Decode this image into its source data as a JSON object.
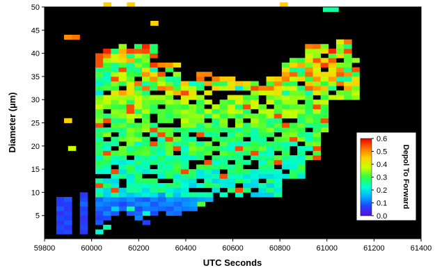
{
  "chart_data": {
    "type": "heatmap",
    "xlabel": "UTC Seconds",
    "ylabel": "Diameter (µm)",
    "xlim": [
      59800,
      61400
    ],
    "ylim": [
      0,
      50
    ],
    "x_ticks": [
      "59800",
      "60000",
      "60200",
      "60400",
      "60600",
      "60800",
      "61000",
      "61200",
      "61400"
    ],
    "y_ticks": [
      "5",
      "10",
      "15",
      "20",
      "25",
      "30",
      "35",
      "40",
      "45",
      "50"
    ],
    "background": "#000000",
    "colorbar": {
      "title": "Depol To Forward",
      "range": [
        0,
        0.6
      ],
      "ticks": [
        "0.0",
        "0.1",
        "0.2",
        "0.3",
        "0.4",
        "0.5",
        "0.6"
      ],
      "colors": [
        "#5a10e0",
        "#2040ff",
        "#00b4ff",
        "#00ffd0",
        "#30ff40",
        "#c8ff00",
        "#ffd000",
        "#ff7000",
        "#e80000"
      ],
      "placement": "right-inside"
    },
    "x_bin_width": 33,
    "y_bin_width": 1,
    "points_note": "each point: [x_start (UTC s), diameter_start (um), depol ratio]",
    "points": [
      [
        59850,
        1,
        0.07
      ],
      [
        59850,
        2,
        0.08
      ],
      [
        59850,
        3,
        0.06
      ],
      [
        59850,
        4,
        0.08
      ],
      [
        59850,
        5,
        0.05
      ],
      [
        59850,
        6,
        0.09
      ],
      [
        59850,
        7,
        0.06
      ],
      [
        59850,
        8,
        0.07
      ],
      [
        59883,
        1,
        0.08
      ],
      [
        59883,
        2,
        0.06
      ],
      [
        59883,
        3,
        0.09
      ],
      [
        59883,
        4,
        0.07
      ],
      [
        59883,
        5,
        0.08
      ],
      [
        59883,
        6,
        0.06
      ],
      [
        59883,
        7,
        0.07
      ],
      [
        59883,
        8,
        0.09
      ],
      [
        59950,
        1,
        0.06
      ],
      [
        59950,
        2,
        0.08
      ],
      [
        59950,
        3,
        0.07
      ],
      [
        59950,
        4,
        0.05
      ],
      [
        59950,
        5,
        0.08
      ],
      [
        59950,
        6,
        0.07
      ],
      [
        59950,
        7,
        0.1
      ],
      [
        59950,
        8,
        0.08
      ],
      [
        59950,
        9,
        0.06
      ],
      [
        60016,
        1,
        0.22
      ],
      [
        60016,
        3,
        0.09
      ],
      [
        60016,
        4,
        0.07
      ],
      [
        60016,
        5,
        0.08
      ],
      [
        60016,
        6,
        0.1
      ],
      [
        60016,
        7,
        0.12
      ],
      [
        60016,
        8,
        0.1
      ],
      [
        60016,
        9,
        0.14
      ],
      [
        60049,
        2,
        0.25
      ],
      [
        60049,
        4,
        0.08
      ],
      [
        60049,
        5,
        0.12
      ],
      [
        60049,
        6,
        0.09
      ],
      [
        60049,
        7,
        0.11
      ],
      [
        60049,
        8,
        0.13
      ],
      [
        60049,
        9,
        0.1
      ],
      [
        60083,
        5,
        0.09
      ],
      [
        60083,
        6,
        0.18
      ],
      [
        60083,
        7,
        0.1
      ],
      [
        60083,
        8,
        0.12
      ],
      [
        60083,
        9,
        0.14
      ],
      [
        60116,
        6,
        0.1
      ],
      [
        60116,
        7,
        0.08
      ],
      [
        60116,
        8,
        0.11
      ],
      [
        60116,
        9,
        0.12
      ],
      [
        60149,
        5,
        0.09
      ],
      [
        60149,
        6,
        0.25
      ],
      [
        60149,
        7,
        0.1
      ],
      [
        60149,
        8,
        0.13
      ],
      [
        60149,
        9,
        0.1
      ],
      [
        60183,
        4,
        0.12
      ],
      [
        60183,
        5,
        0.1
      ],
      [
        60183,
        6,
        0.08
      ],
      [
        60183,
        7,
        0.12
      ],
      [
        60183,
        8,
        0.1
      ],
      [
        60183,
        9,
        0.13
      ],
      [
        60216,
        3,
        0.07
      ],
      [
        60216,
        5,
        0.22
      ],
      [
        60216,
        6,
        0.11
      ],
      [
        60216,
        7,
        0.13
      ],
      [
        60216,
        8,
        0.09
      ],
      [
        60216,
        9,
        0.12
      ],
      [
        60249,
        5,
        0.08
      ],
      [
        60249,
        6,
        0.11
      ],
      [
        60249,
        7,
        0.09
      ],
      [
        60249,
        8,
        0.12
      ],
      [
        60249,
        9,
        0.14
      ],
      [
        60283,
        6,
        0.1
      ],
      [
        60283,
        7,
        0.12
      ],
      [
        60283,
        8,
        0.1
      ],
      [
        60283,
        9,
        0.13
      ],
      [
        60316,
        5,
        0.11
      ],
      [
        60316,
        6,
        0.09
      ],
      [
        60316,
        7,
        0.12
      ],
      [
        60316,
        8,
        0.14
      ],
      [
        60316,
        9,
        0.12
      ],
      [
        60349,
        5,
        0.1
      ],
      [
        60349,
        6,
        0.12
      ],
      [
        60349,
        7,
        0.1
      ],
      [
        60349,
        8,
        0.13
      ],
      [
        60349,
        9,
        0.15
      ],
      [
        60383,
        6,
        0.11
      ],
      [
        60383,
        7,
        0.13
      ],
      [
        60383,
        8,
        0.12
      ],
      [
        60383,
        9,
        0.14
      ],
      [
        60416,
        6,
        0.12
      ],
      [
        60416,
        7,
        0.14
      ],
      [
        60416,
        8,
        0.13
      ],
      [
        60416,
        9,
        0.15
      ],
      [
        60449,
        7,
        0.32
      ],
      [
        60449,
        8,
        0.14
      ],
      [
        60449,
        9,
        0.16
      ],
      [
        60483,
        8,
        0.15
      ],
      [
        60483,
        9,
        0.17
      ],
      [
        59900,
        19,
        0.38
      ],
      [
        59883,
        25,
        0.45
      ],
      [
        59883,
        43,
        0.5
      ],
      [
        59916,
        43,
        0.52
      ],
      [
        60050,
        50,
        0.45
      ],
      [
        60150,
        50,
        0.45
      ],
      [
        60250,
        46,
        0.45
      ],
      [
        60800,
        50,
        0.45
      ],
      [
        60983,
        49,
        0.25
      ],
      [
        61016,
        49,
        0.25
      ]
    ]
  }
}
